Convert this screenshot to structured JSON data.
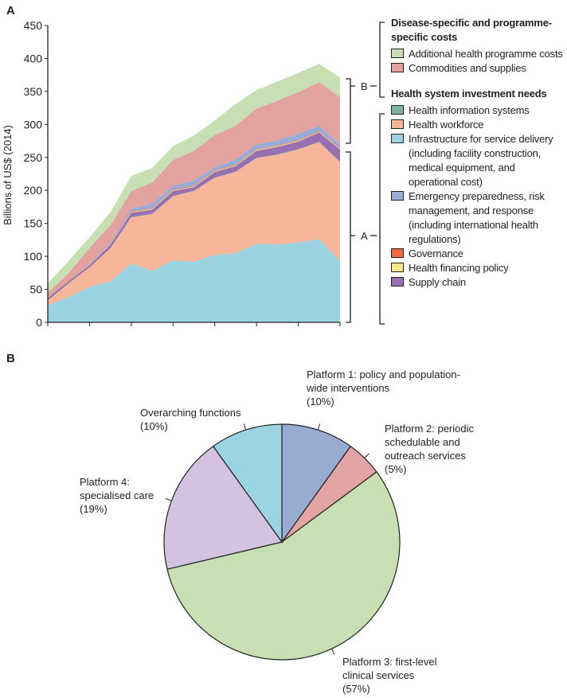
{
  "chart_data": [
    {
      "type": "area",
      "title": "",
      "panel_label": "A",
      "xlabel": "",
      "ylabel": "Billions of US$ (2014)",
      "ylim": [
        0,
        450
      ],
      "yticks": [
        0,
        50,
        100,
        150,
        200,
        250,
        300,
        350,
        400,
        450
      ],
      "x": [
        0,
        1,
        2,
        3,
        4,
        5,
        6,
        7,
        8,
        9,
        10,
        11,
        12,
        13,
        14
      ],
      "series": [
        {
          "name": "Infrastructure for service delivery (including facility construction, medical equipment, and operational cost)",
          "color": "#9bd3e3",
          "values": [
            26,
            38,
            54,
            62,
            89,
            78,
            94,
            92,
            102,
            105,
            119,
            118,
            121,
            126,
            93
          ]
        },
        {
          "name": "Health workforce",
          "color": "#f7b59a",
          "values": [
            7,
            21,
            29,
            50,
            70,
            86,
            97,
            107,
            117,
            123,
            130,
            136,
            141,
            147,
            150
          ]
        },
        {
          "name": "Health information systems",
          "color": "#7fb49b",
          "values": [
            0.5,
            0.5,
            0.5,
            0.5,
            0.5,
            0.5,
            0.5,
            0.5,
            0.5,
            0.5,
            0.5,
            0.5,
            0.5,
            0.5,
            0.5
          ]
        },
        {
          "name": "Supply chain",
          "color": "#9670b0",
          "values": [
            3.5,
            3.5,
            3.5,
            5.5,
            6.5,
            6.5,
            7.5,
            5.5,
            8.5,
            8.5,
            10.5,
            11.5,
            11.5,
            14.5,
            18.5
          ]
        },
        {
          "name": "Health financing policy",
          "color": "#fbe68c",
          "values": [
            1,
            1,
            1,
            1,
            1,
            1,
            1,
            1,
            1,
            1,
            1,
            1,
            1,
            1,
            1
          ]
        },
        {
          "name": "Governance",
          "color": "#ef6a45",
          "values": [
            1,
            1,
            1,
            1,
            1,
            1,
            1,
            1,
            1,
            1,
            1,
            1,
            1,
            1,
            1
          ]
        },
        {
          "name": "Emergency preparedness, risk management, and response (including international health regulations)",
          "color": "#9aabd5",
          "values": [
            1,
            0,
            1,
            2,
            4,
            7,
            6,
            8,
            5,
            8,
            8,
            8,
            10,
            8,
            6
          ]
        },
        {
          "name": "Commodities and supplies",
          "color": "#e1a2a0",
          "values": [
            5,
            10,
            23,
            25,
            27,
            32,
            39,
            45,
            49,
            51,
            54,
            60,
            63,
            66,
            71
          ]
        },
        {
          "name": "Additional health programme costs",
          "color": "#c7dfb3",
          "values": [
            14,
            18,
            16,
            20,
            23,
            22,
            21,
            23,
            22,
            33,
            28,
            29,
            29,
            28,
            30
          ]
        }
      ],
      "brackets": {
        "B": "B",
        "A": "A"
      },
      "legend": {
        "group_b_title": "Disease-specific and programme-specific costs",
        "group_b_items": [
          "Additional health programme costs",
          "Commodities and supplies"
        ],
        "group_a_title": "Health system investment needs",
        "group_a_items": [
          "Health information systems",
          "Health workforce",
          "Infrastructure for service delivery (including facility construction, medical equipment, and operational cost)",
          "Emergency preparedness, risk management, and response (including international health regulations)",
          "Governance",
          "Health financing policy",
          "Supply chain"
        ]
      }
    },
    {
      "type": "pie",
      "panel_label": "B",
      "slices": [
        {
          "label": "Platform 1: policy and population-wide interventions",
          "pct": "(10%)",
          "value": 10,
          "color": "#9aabd2"
        },
        {
          "label": "Platform 2: periodic schedulable and outreach services",
          "pct": "(5%)",
          "value": 5,
          "color": "#e2a5a3"
        },
        {
          "label": "Platform 3: first-level clinical services",
          "pct": "(57%)",
          "value": 57,
          "color": "#c8dfb4"
        },
        {
          "label": "Platform 4: specialised care",
          "pct": "(19%)",
          "value": 19,
          "color": "#d3c3e0"
        },
        {
          "label": "Overarching functions",
          "pct": "(10%)",
          "value": 10,
          "color": "#9dd4e3"
        }
      ]
    }
  ]
}
